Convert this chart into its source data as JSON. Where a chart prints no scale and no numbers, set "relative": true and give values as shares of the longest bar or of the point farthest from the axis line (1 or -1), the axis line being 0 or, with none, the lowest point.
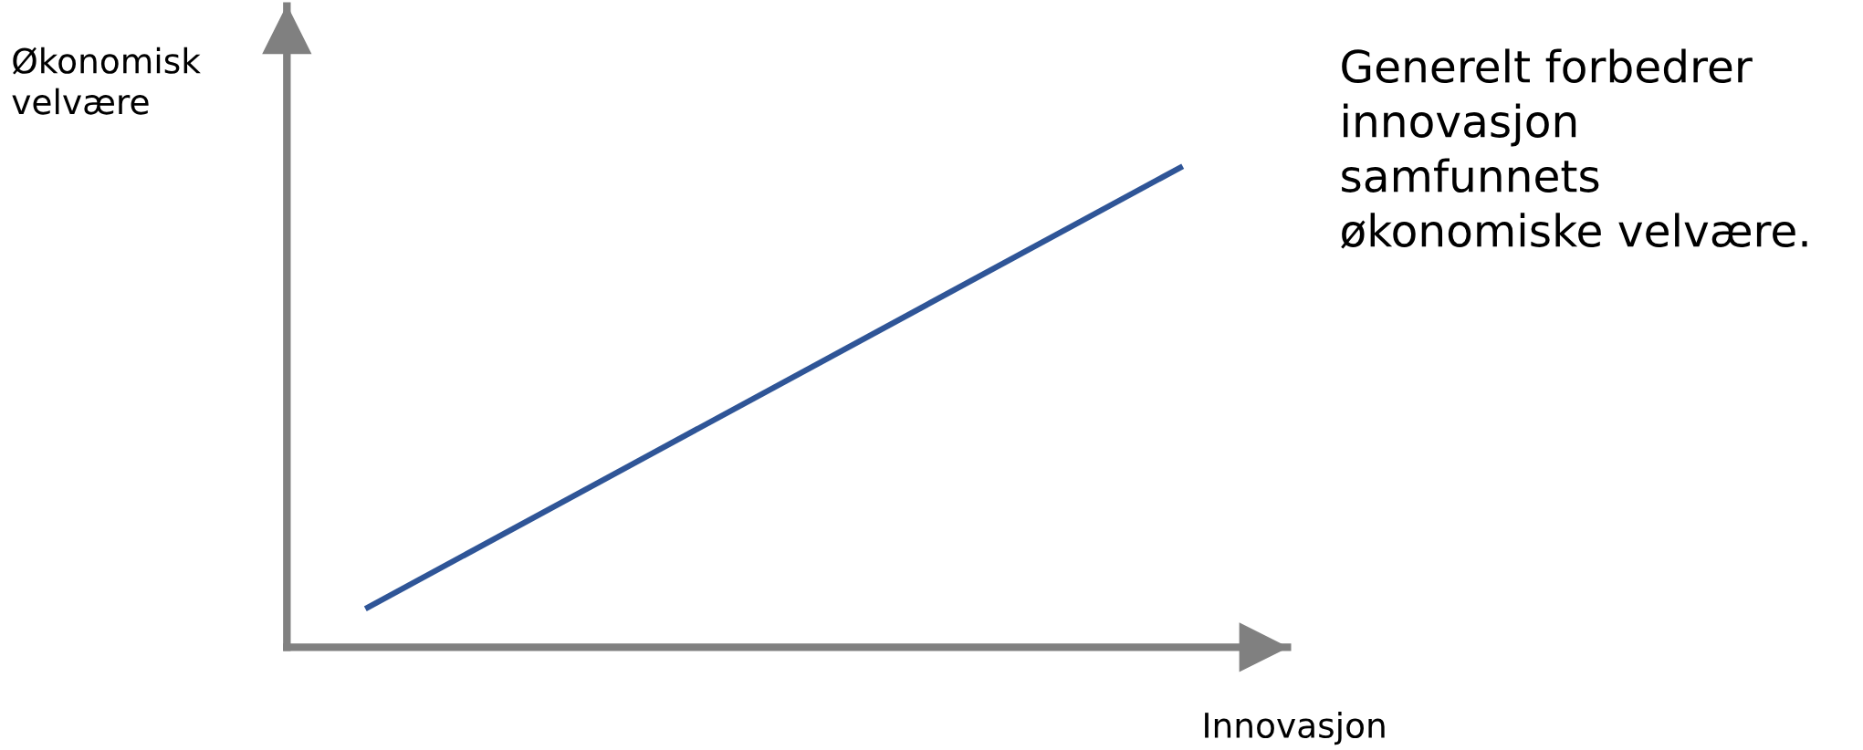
{
  "chart_data": {
    "type": "line",
    "relative": true,
    "categories": [
      null,
      null
    ],
    "series": [
      {
        "color": "#2f5597",
        "values": [
          0.08,
          1
        ]
      }
    ],
    "xlabel": "Innovasjon",
    "ylabel": "Økonomisk\nvelvære",
    "annotations": [
      "Generelt forbedrer\ninnovasjon\nsamfunnets\nøkonomiske velvære."
    ],
    "legend": false,
    "marker": "none",
    "line_style": "solid"
  }
}
